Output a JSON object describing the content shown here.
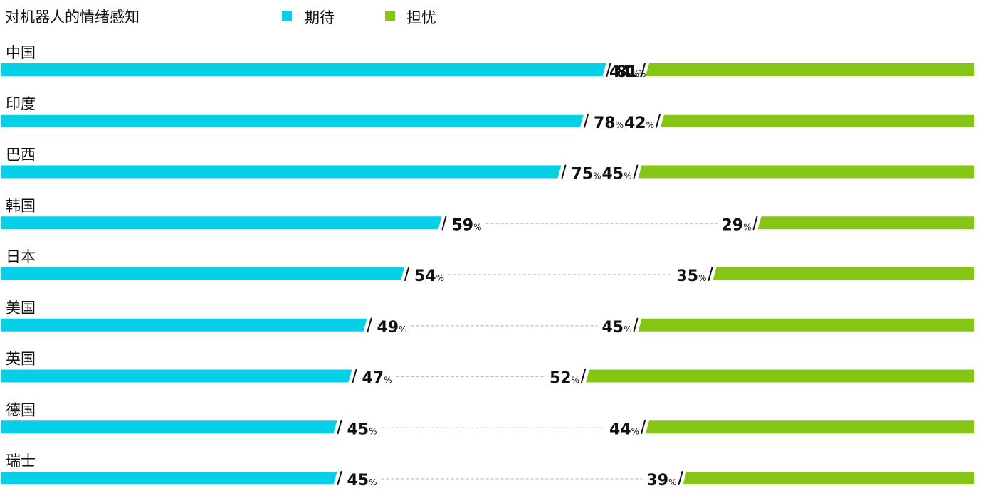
{
  "title": "对机器人的情绪感知",
  "legend": [
    {
      "label": "期待",
      "color": "#06CFE8"
    },
    {
      "label": "担忧",
      "color": "#84C516"
    }
  ],
  "chart_data": {
    "type": "bar",
    "title": "对机器人的情绪感知",
    "xlabel": "",
    "ylabel": "",
    "unit": "%",
    "categories": [
      "中国",
      "印度",
      "巴西",
      "韩国",
      "日本",
      "美国",
      "英国",
      "德国",
      "瑞士"
    ],
    "series": [
      {
        "name": "期待",
        "values": [
          81,
          78,
          75,
          59,
          54,
          49,
          47,
          45,
          45
        ],
        "color": "#06CFE8",
        "side": "left"
      },
      {
        "name": "担忧",
        "values": [
          44,
          42,
          45,
          29,
          35,
          45,
          52,
          44,
          39
        ],
        "color": "#84C516",
        "side": "right"
      }
    ],
    "ylim": [
      0,
      100
    ],
    "grid": false,
    "legend_position": "top"
  }
}
